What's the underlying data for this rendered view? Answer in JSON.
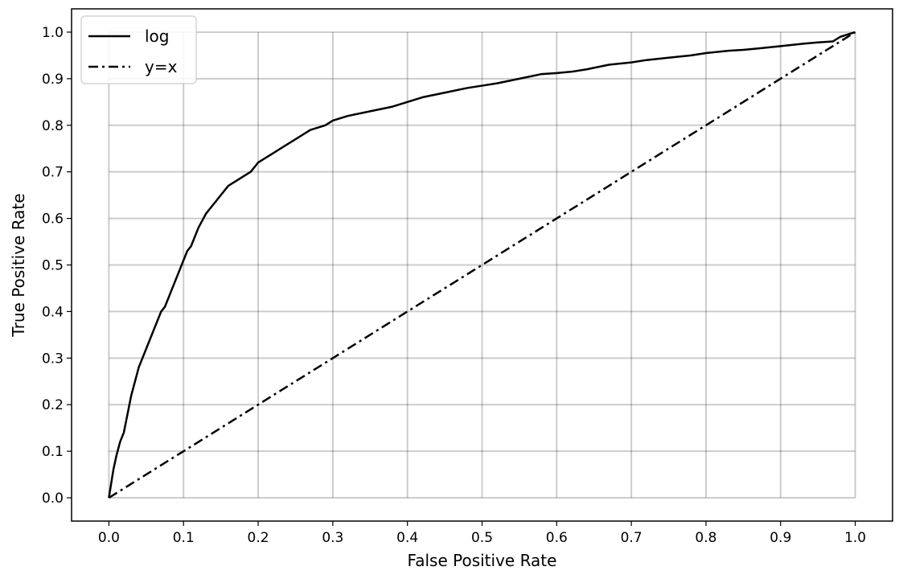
{
  "chart_data": {
    "type": "line",
    "title": "",
    "xlabel": "False Positive Rate",
    "ylabel": "True Positive Rate",
    "xlim": [
      -0.05,
      1.05
    ],
    "ylim": [
      -0.05,
      1.05
    ],
    "grid": true,
    "legend_position": "top-left",
    "xticks": [
      "0.0",
      "0.1",
      "0.2",
      "0.3",
      "0.4",
      "0.5",
      "0.6",
      "0.7",
      "0.8",
      "0.9",
      "1.0"
    ],
    "yticks": [
      "0.0",
      "0.1",
      "0.2",
      "0.3",
      "0.4",
      "0.5",
      "0.6",
      "0.7",
      "0.8",
      "0.9",
      "1.0"
    ],
    "series": [
      {
        "name": "log",
        "style": "solid",
        "color": "#000000",
        "x": [
          0.0,
          0.003,
          0.006,
          0.01,
          0.015,
          0.02,
          0.025,
          0.03,
          0.035,
          0.04,
          0.045,
          0.05,
          0.055,
          0.06,
          0.065,
          0.07,
          0.075,
          0.08,
          0.085,
          0.09,
          0.095,
          0.1,
          0.105,
          0.11,
          0.115,
          0.12,
          0.13,
          0.14,
          0.15,
          0.16,
          0.17,
          0.18,
          0.19,
          0.2,
          0.21,
          0.22,
          0.23,
          0.24,
          0.25,
          0.27,
          0.29,
          0.3,
          0.32,
          0.35,
          0.38,
          0.4,
          0.42,
          0.45,
          0.48,
          0.5,
          0.52,
          0.55,
          0.58,
          0.6,
          0.62,
          0.64,
          0.67,
          0.7,
          0.72,
          0.75,
          0.78,
          0.8,
          0.83,
          0.85,
          0.87,
          0.9,
          0.93,
          0.95,
          0.97,
          0.98,
          1.0
        ],
        "y": [
          0.0,
          0.03,
          0.06,
          0.09,
          0.12,
          0.14,
          0.18,
          0.22,
          0.25,
          0.28,
          0.3,
          0.32,
          0.34,
          0.36,
          0.38,
          0.4,
          0.41,
          0.43,
          0.45,
          0.47,
          0.49,
          0.51,
          0.53,
          0.54,
          0.56,
          0.58,
          0.61,
          0.63,
          0.65,
          0.67,
          0.68,
          0.69,
          0.7,
          0.72,
          0.73,
          0.74,
          0.75,
          0.76,
          0.77,
          0.79,
          0.8,
          0.81,
          0.82,
          0.83,
          0.84,
          0.85,
          0.86,
          0.87,
          0.88,
          0.885,
          0.89,
          0.9,
          0.91,
          0.912,
          0.915,
          0.92,
          0.93,
          0.935,
          0.94,
          0.945,
          0.95,
          0.955,
          0.96,
          0.962,
          0.965,
          0.97,
          0.975,
          0.978,
          0.98,
          0.99,
          1.0
        ]
      },
      {
        "name": "y=x",
        "style": "dashdot",
        "color": "#000000",
        "x": [
          0.0,
          1.0
        ],
        "y": [
          0.0,
          1.0
        ]
      }
    ]
  }
}
